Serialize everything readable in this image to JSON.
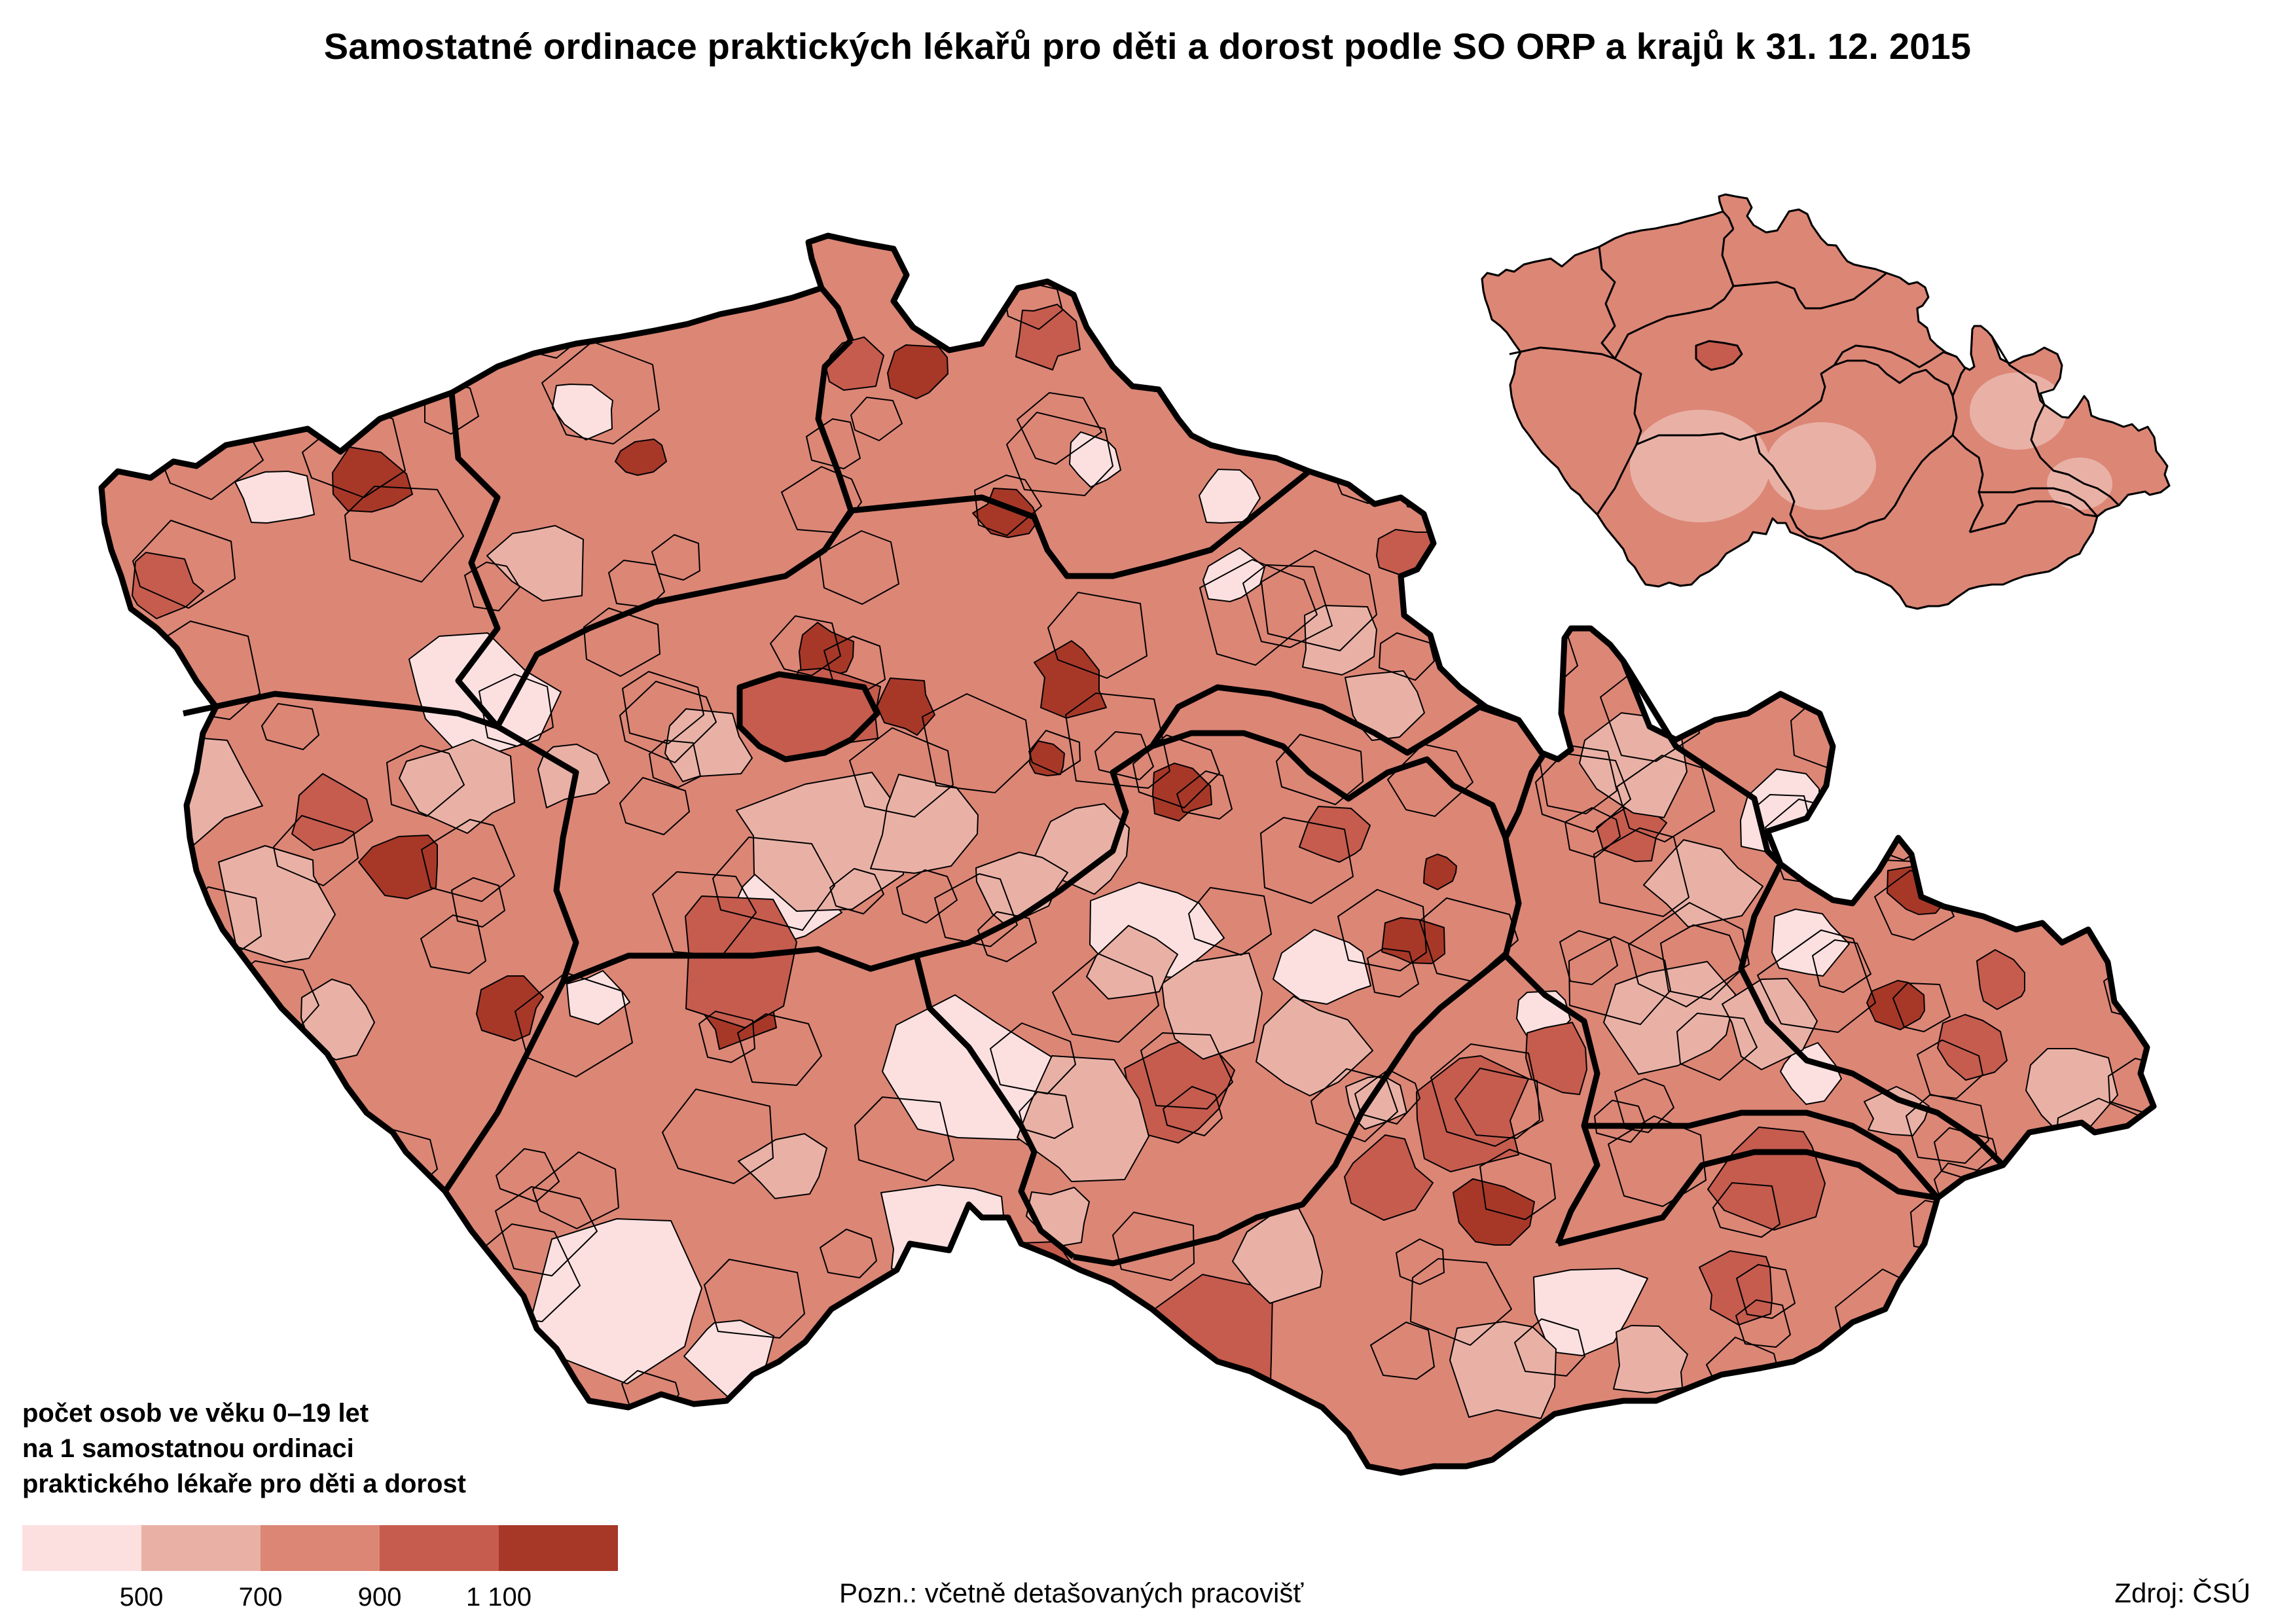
{
  "title": "Samostatné ordinace praktických lékařů pro děti a dorost podle SO ORP a krajů k 31. 12. 2015",
  "legend": {
    "title_lines": [
      "počet osob ve věku 0–19 let",
      "na 1 samostatnou ordinaci",
      "praktického lékaře pro děti a dorost"
    ],
    "classes": [
      {
        "color": "#fce0e0"
      },
      {
        "color": "#e9b1a6"
      },
      {
        "color": "#dc8676"
      },
      {
        "color": "#c55c4e"
      },
      {
        "color": "#a73828"
      }
    ],
    "breaks": [
      "500",
      "700",
      "900",
      "1 100"
    ]
  },
  "note": "Pozn.: včetně detašovaných pracovišť",
  "source": "Zdroj: ČSÚ",
  "colors": {
    "border_region": "#000000",
    "border_district": "#000000",
    "background": "#ffffff"
  }
}
